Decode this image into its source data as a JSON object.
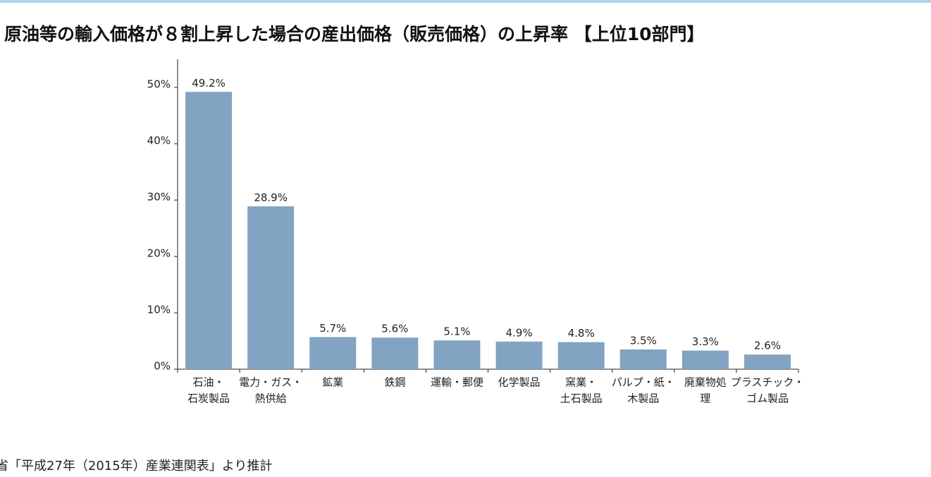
{
  "chart_data": {
    "type": "bar",
    "title": "原油等の輸入価格が８割上昇した場合の産出価格（販売価格）の上昇率 【上位10部門】",
    "categories": [
      [
        "石油・",
        "石炭製品"
      ],
      [
        "電力・ガス・",
        "熱供給"
      ],
      [
        "鉱業"
      ],
      [
        "鉄鋼"
      ],
      [
        "運輸・郵便"
      ],
      [
        "化学製品"
      ],
      [
        "窯業・",
        "土石製品"
      ],
      [
        "パルプ・紙・",
        "木製品"
      ],
      [
        "廃棄物処",
        "理"
      ],
      [
        "プラスチック・",
        "ゴム製品"
      ]
    ],
    "values": [
      49.2,
      28.9,
      5.7,
      5.6,
      5.1,
      4.9,
      4.8,
      3.5,
      3.3,
      2.6
    ],
    "value_labels": [
      "49.2%",
      "28.9%",
      "5.7%",
      "5.6%",
      "5.1%",
      "4.9%",
      "4.8%",
      "3.5%",
      "3.3%",
      "2.6%"
    ],
    "color": "#82a3c1",
    "ylim": [
      0,
      55
    ],
    "yticks": [
      {
        "value": 0,
        "label": "0%"
      },
      {
        "value": 10,
        "label": "10%"
      },
      {
        "value": 20,
        "label": "20%"
      },
      {
        "value": 30,
        "label": "30%"
      },
      {
        "value": 40,
        "label": "40%"
      },
      {
        "value": 50,
        "label": "50%"
      }
    ],
    "source": "省「平成27年（2015年）産業連関表」より推計"
  }
}
